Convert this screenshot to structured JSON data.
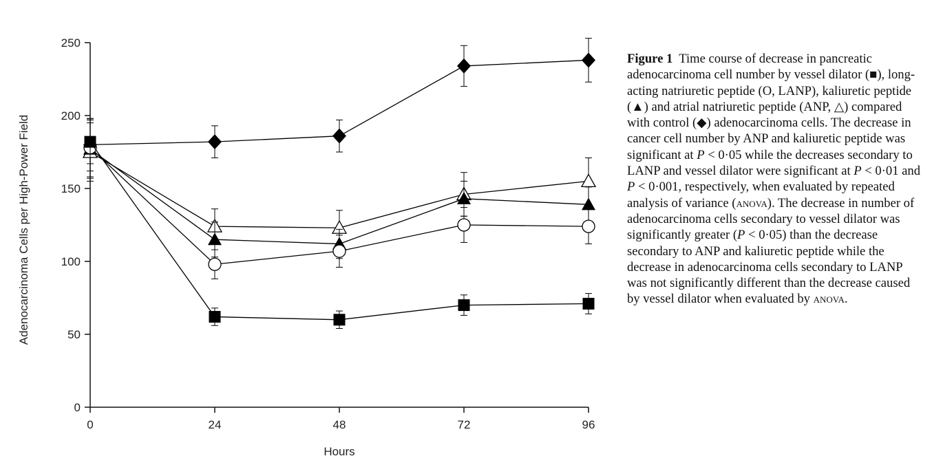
{
  "chart_data": {
    "type": "line",
    "xlabel": "Hours",
    "ylabel": "Adenocarcinoma Cells per High-Power Field",
    "x": [
      0,
      24,
      48,
      72,
      96
    ],
    "xlim": [
      0,
      96
    ],
    "ylim": [
      0,
      250
    ],
    "x_ticks": [
      0,
      24,
      48,
      72,
      96
    ],
    "y_ticks": [
      0,
      50,
      100,
      150,
      200,
      250
    ],
    "grid": false,
    "legend": "none",
    "series": [
      {
        "marker": "filled-diamond",
        "values": [
          180,
          182,
          186,
          234,
          238
        ],
        "errors": [
          18,
          11,
          11,
          14,
          15
        ]
      },
      {
        "marker": "open-triangle",
        "values": [
          175,
          124,
          123,
          146,
          155
        ],
        "errors": [
          20,
          12,
          12,
          15,
          16
        ]
      },
      {
        "marker": "filled-triangle",
        "values": [
          177,
          115,
          112,
          143,
          139
        ],
        "errors": [
          20,
          12,
          10,
          12,
          12
        ]
      },
      {
        "marker": "open-circle",
        "values": [
          178,
          98,
          107,
          125,
          124
        ],
        "errors": [
          20,
          10,
          11,
          12,
          12
        ]
      },
      {
        "marker": "filled-square",
        "values": [
          182,
          62,
          60,
          70,
          71
        ],
        "errors": [
          15,
          6,
          6,
          7,
          7
        ]
      }
    ]
  },
  "caption": {
    "label": "Figure 1",
    "s1": "Time course of decrease in pancreatic adenocarcinoma cell number by vessel dilator (",
    "sym_square": "■",
    "s2": "), long-acting natriuretic peptide (O, LANP), kaliuretic peptide (",
    "sym_triangle": "▲",
    "s3": ") and atrial natriuretic peptide (ANP, ",
    "sym_open_triangle": "△",
    "s4": ") compared with control (",
    "sym_diamond": "◆",
    "s5": ") adenocarcinoma cells. The decrease in cancer cell number by ANP and kaliuretic peptide was significant at ",
    "p1": "P",
    "s6": " < 0·05 while the decreases secondary to LANP and vessel dilator were significant at ",
    "p2": "P",
    "s7": " < 0·01 and ",
    "p3": "P",
    "s8": " < 0·001, respectively, when evaluated by repeated analysis of variance (",
    "anova1": "anova",
    "s9": "). The decrease in number of adenocarcinoma cells secondary to vessel dilator was significantly greater (",
    "p4": "P",
    "s10": " < 0·05) than the decrease secondary to ANP and kaliuretic peptide while the decrease in adenocarcinoma cells secondary to LANP was not significantly different than the decrease caused by vessel dilator when evaluated by ",
    "anova2": "anova",
    "s11": "."
  }
}
